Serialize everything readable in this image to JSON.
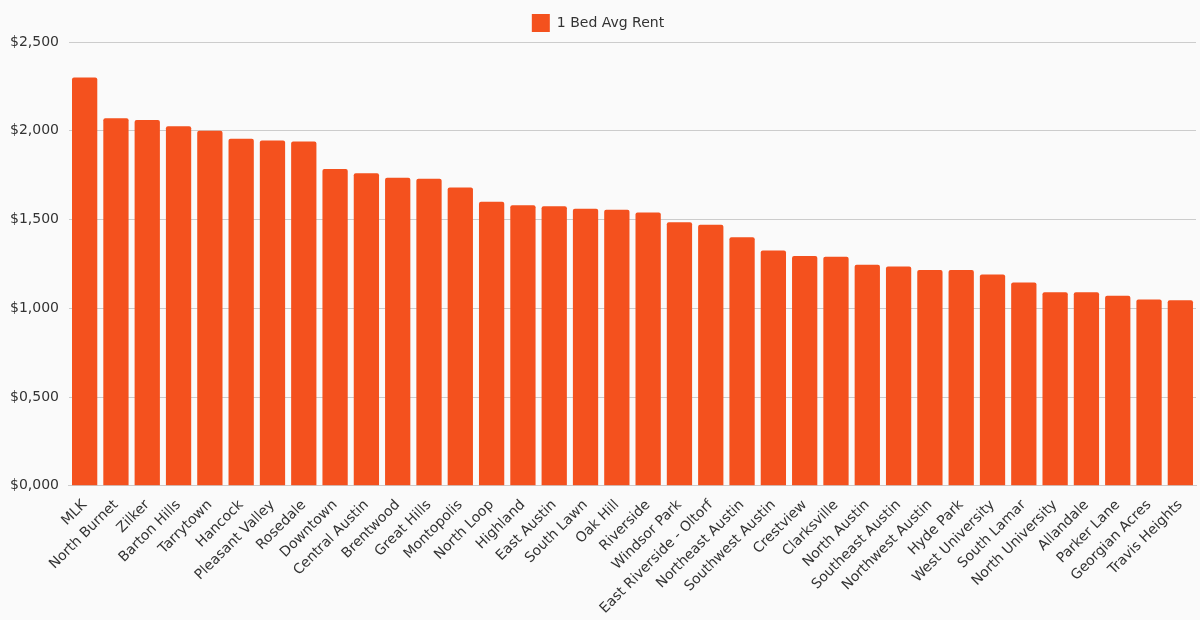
{
  "chart_data": {
    "type": "bar",
    "categories": [
      "MLK",
      "North Burnet",
      "Zilker",
      "Barton Hills",
      "Tarrytown",
      "Hancock",
      "Pleasant Valley",
      "Rosedale",
      "Downtown",
      "Central Austin",
      "Brentwood",
      "Great Hills",
      "Montopolis",
      "North Loop",
      "Highland",
      "East Austin",
      "South Lawn",
      "Oak Hill",
      "Riverside",
      "Windsor Park",
      "East Riverside - Oltorf",
      "Northeast Austin",
      "Southwest Austin",
      "Crestview",
      "Clarksville",
      "North Austin",
      "Southeast Austin",
      "Northwest Austin",
      "Hyde Park",
      "West University",
      "South Lamar",
      "North University",
      "Allandale",
      "Parker Lane",
      "Georgian Acres",
      "Travis Heights"
    ],
    "series": [
      {
        "name": "1 Bed Avg Rent",
        "color": "#f4511e",
        "values": [
          2.3,
          2.07,
          2.06,
          2.025,
          2.0,
          1.955,
          1.945,
          1.94,
          1.785,
          1.76,
          1.735,
          1.73,
          1.68,
          1.6,
          1.58,
          1.575,
          1.56,
          1.555,
          1.54,
          1.485,
          1.47,
          1.4,
          1.325,
          1.295,
          1.29,
          1.245,
          1.235,
          1.215,
          1.215,
          1.19,
          1.145,
          1.09,
          1.09,
          1.07,
          1.05,
          1.045
        ]
      }
    ],
    "ylim": [
      0,
      2.5
    ],
    "yticks": [
      {
        "value": 0,
        "label": "$0,000"
      },
      {
        "value": 0.5,
        "label": "$0,500"
      },
      {
        "value": 1,
        "label": "$1,000"
      },
      {
        "value": 1.5,
        "label": "$1,500"
      },
      {
        "value": 2,
        "label": "$2,000"
      },
      {
        "value": 2.5,
        "label": "$2,500"
      }
    ],
    "grid": "y",
    "legend": "top"
  }
}
